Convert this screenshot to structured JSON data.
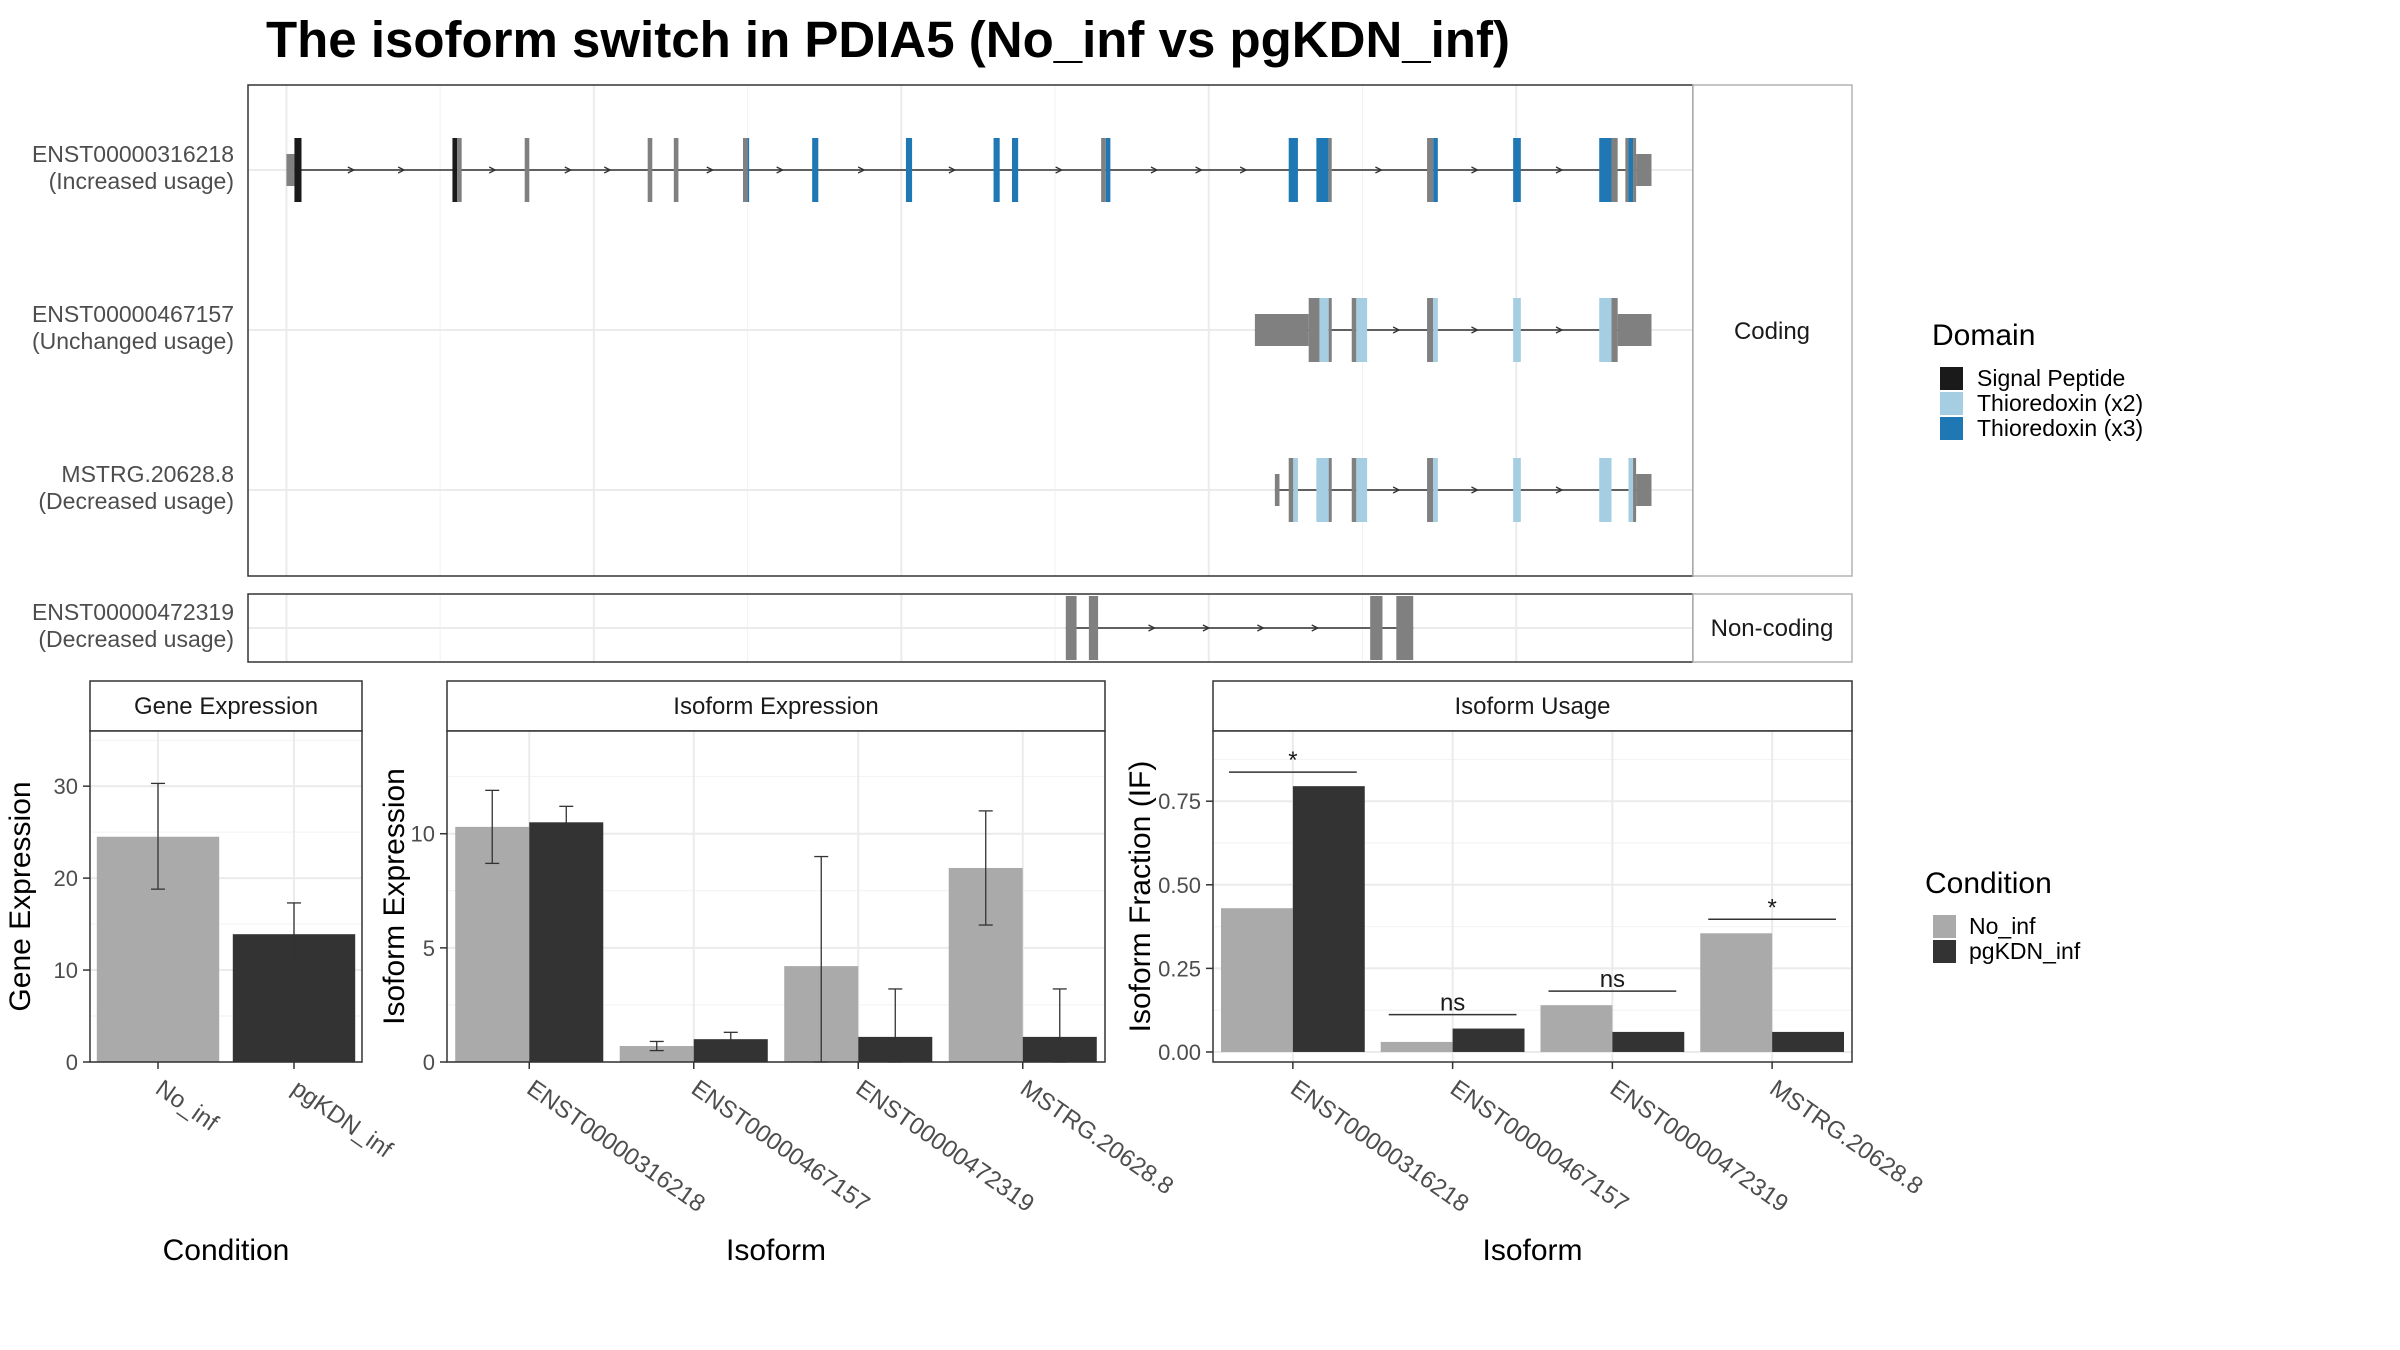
{
  "title": "The isoform switch in PDIA5 (No_inf vs pgKDN_inf)",
  "colors": {
    "exon_plain": "#808080",
    "signal_peptide": "#1a1a1a",
    "thioredoxin_x2": "#a6cee3",
    "thioredoxin_x3": "#1f78b4",
    "no_inf": "#aaaaaa",
    "pgkdn_inf": "#333333",
    "grid": "#ebebeb",
    "panel_border": "#333333",
    "strip_border": "#b3b3b3"
  },
  "structure": {
    "coding_label": "Coding",
    "noncoding_label": "Non-coding",
    "transcripts": [
      {
        "id": "ENST00000316218",
        "usage": "(Increased usage)",
        "group": "coding",
        "intron": [
          0.52,
          0.98
        ],
        "exons": [
          [
            0.0,
            0.52,
            "utr",
            "exon_plain"
          ],
          [
            0.52,
            0.98,
            "cds",
            "signal_peptide"
          ],
          [
            10.8,
            11.1,
            "cds",
            "signal_peptide"
          ],
          [
            11.1,
            11.4,
            "cds",
            "exon_plain"
          ],
          [
            15.5,
            15.8,
            "cds",
            "exon_plain"
          ],
          [
            23.5,
            23.8,
            "cds",
            "exon_plain"
          ],
          [
            25.2,
            25.5,
            "cds",
            "exon_plain"
          ],
          [
            29.7,
            30.0,
            "cds",
            "exon_plain"
          ],
          [
            30.0,
            30.1,
            "cds",
            "thioredoxin_x3"
          ],
          [
            34.2,
            34.6,
            "cds",
            "thioredoxin_x3"
          ],
          [
            40.3,
            40.7,
            "cds",
            "thioredoxin_x3"
          ],
          [
            46.0,
            46.4,
            "cds",
            "thioredoxin_x3"
          ],
          [
            47.2,
            47.6,
            "cds",
            "thioredoxin_x3"
          ],
          [
            53.0,
            53.3,
            "cds",
            "exon_plain"
          ],
          [
            53.3,
            53.6,
            "cds",
            "thioredoxin_x3"
          ],
          [
            65.2,
            65.8,
            "cds",
            "thioredoxin_x3"
          ],
          [
            67.0,
            67.8,
            "cds",
            "thioredoxin_x3"
          ],
          [
            67.8,
            68.0,
            "cds",
            "exon_plain"
          ],
          [
            74.2,
            74.6,
            "cds",
            "exon_plain"
          ],
          [
            74.6,
            74.9,
            "cds",
            "thioredoxin_x3"
          ],
          [
            79.8,
            80.3,
            "cds",
            "thioredoxin_x3"
          ],
          [
            85.4,
            86.2,
            "cds",
            "thioredoxin_x3"
          ],
          [
            86.2,
            86.6,
            "cds",
            "exon_plain"
          ],
          [
            87.1,
            87.3,
            "cds",
            "exon_plain"
          ],
          [
            87.3,
            87.6,
            "cds",
            "thioredoxin_x3"
          ],
          [
            87.6,
            87.8,
            "cds",
            "exon_plain"
          ],
          [
            87.8,
            88.8,
            "utr",
            "exon_plain"
          ]
        ]
      },
      {
        "id": "ENST00000467157",
        "usage": "(Unchanged usage)",
        "group": "coding",
        "intron": [
          0.0,
          0.0
        ],
        "exons": [
          [
            63.0,
            66.5,
            "utr",
            "exon_plain"
          ],
          [
            66.5,
            67.2,
            "cds",
            "exon_plain"
          ],
          [
            67.2,
            67.8,
            "cds",
            "thioredoxin_x2"
          ],
          [
            67.8,
            68.0,
            "cds",
            "exon_plain"
          ],
          [
            69.3,
            69.6,
            "cds",
            "exon_plain"
          ],
          [
            69.6,
            70.3,
            "cds",
            "thioredoxin_x2"
          ],
          [
            74.2,
            74.6,
            "cds",
            "exon_plain"
          ],
          [
            74.6,
            74.9,
            "cds",
            "thioredoxin_x2"
          ],
          [
            79.8,
            80.3,
            "cds",
            "thioredoxin_x2"
          ],
          [
            85.4,
            86.2,
            "cds",
            "thioredoxin_x2"
          ],
          [
            86.2,
            86.6,
            "cds",
            "exon_plain"
          ],
          [
            86.6,
            88.8,
            "utr",
            "exon_plain"
          ]
        ]
      },
      {
        "id": "MSTRG.20628.8",
        "usage": "(Decreased usage)",
        "group": "coding",
        "intron": [
          0.0,
          0.0
        ],
        "exons": [
          [
            64.3,
            64.6,
            "utr",
            "exon_plain"
          ],
          [
            65.2,
            65.5,
            "cds",
            "exon_plain"
          ],
          [
            65.5,
            65.8,
            "cds",
            "thioredoxin_x2"
          ],
          [
            67.0,
            67.8,
            "cds",
            "thioredoxin_x2"
          ],
          [
            67.8,
            68.0,
            "cds",
            "exon_plain"
          ],
          [
            69.3,
            69.6,
            "cds",
            "exon_plain"
          ],
          [
            69.6,
            70.3,
            "cds",
            "thioredoxin_x2"
          ],
          [
            74.2,
            74.6,
            "cds",
            "exon_plain"
          ],
          [
            74.6,
            74.9,
            "cds",
            "thioredoxin_x2"
          ],
          [
            79.8,
            80.3,
            "cds",
            "thioredoxin_x2"
          ],
          [
            85.4,
            86.2,
            "cds",
            "thioredoxin_x2"
          ],
          [
            87.3,
            87.6,
            "cds",
            "thioredoxin_x2"
          ],
          [
            87.6,
            87.8,
            "cds",
            "exon_plain"
          ],
          [
            87.8,
            88.8,
            "utr",
            "exon_plain"
          ]
        ]
      },
      {
        "id": "ENST00000472319",
        "usage": "(Decreased usage)",
        "group": "noncoding",
        "intron": [
          0.0,
          0.0
        ],
        "exons": [
          [
            50.7,
            51.4,
            "nc",
            "exon_plain"
          ],
          [
            52.2,
            52.8,
            "nc",
            "exon_plain"
          ],
          [
            70.5,
            71.3,
            "nc",
            "exon_plain"
          ],
          [
            72.2,
            73.3,
            "nc",
            "exon_plain"
          ]
        ]
      }
    ]
  },
  "domain_legend": {
    "title": "Domain",
    "items": [
      {
        "label": "Signal Peptide",
        "color": "signal_peptide"
      },
      {
        "label": "Thioredoxin (x2)",
        "color": "thioredoxin_x2"
      },
      {
        "label": "Thioredoxin (x3)",
        "color": "thioredoxin_x3"
      }
    ]
  },
  "condition_legend": {
    "title": "Condition",
    "items": [
      {
        "label": "No_inf",
        "color": "no_inf"
      },
      {
        "label": "pgKDN_inf",
        "color": "pgkdn_inf"
      }
    ]
  },
  "chart_data": [
    {
      "type": "bar",
      "title": "Gene Expression",
      "xlabel": "Condition",
      "ylabel": "Gene Expression",
      "ylim": [
        0,
        36
      ],
      "yticks": [
        0,
        10,
        20,
        30
      ],
      "categories": [
        "No_inf",
        "pgKDN_inf"
      ],
      "values": [
        24.5,
        13.9
      ],
      "error_low": [
        18.8,
        10.6
      ],
      "error_high": [
        30.3,
        17.3
      ]
    },
    {
      "type": "bar",
      "title": "Isoform Expression",
      "xlabel": "Isoform",
      "ylabel": "Isoform Expression",
      "ylim": [
        0,
        14.5
      ],
      "yticks": [
        0,
        5,
        10
      ],
      "categories": [
        "ENST00000316218",
        "ENST00000467157",
        "ENST00000472319",
        "MSTRG.20628.8"
      ],
      "series": [
        {
          "name": "No_inf",
          "values": [
            10.3,
            0.7,
            4.2,
            8.5
          ],
          "error_low": [
            8.7,
            0.5,
            0.0,
            6.0
          ],
          "error_high": [
            11.9,
            0.9,
            9.0,
            11.0
          ]
        },
        {
          "name": "pgKDN_inf",
          "values": [
            10.5,
            1.0,
            1.1,
            1.1
          ],
          "error_low": [
            9.8,
            0.7,
            0.0,
            0.0
          ],
          "error_high": [
            11.2,
            1.3,
            3.2,
            3.2
          ]
        }
      ]
    },
    {
      "type": "bar",
      "title": "Isoform Usage",
      "xlabel": "Isoform",
      "ylabel": "Isoform Fraction (IF)",
      "ylim": [
        -0.03,
        0.96
      ],
      "yticks": [
        0.0,
        0.25,
        0.5,
        0.75
      ],
      "ytick_labels": [
        "0.00",
        "0.25",
        "0.50",
        "0.75"
      ],
      "categories": [
        "ENST00000316218",
        "ENST00000467157",
        "ENST00000472319",
        "MSTRG.20628.8"
      ],
      "series": [
        {
          "name": "No_inf",
          "values": [
            0.43,
            0.03,
            0.14,
            0.355
          ]
        },
        {
          "name": "pgKDN_inf",
          "values": [
            0.795,
            0.07,
            0.06,
            0.06
          ]
        }
      ],
      "significance": [
        "*",
        "ns",
        "ns",
        "*"
      ]
    }
  ]
}
